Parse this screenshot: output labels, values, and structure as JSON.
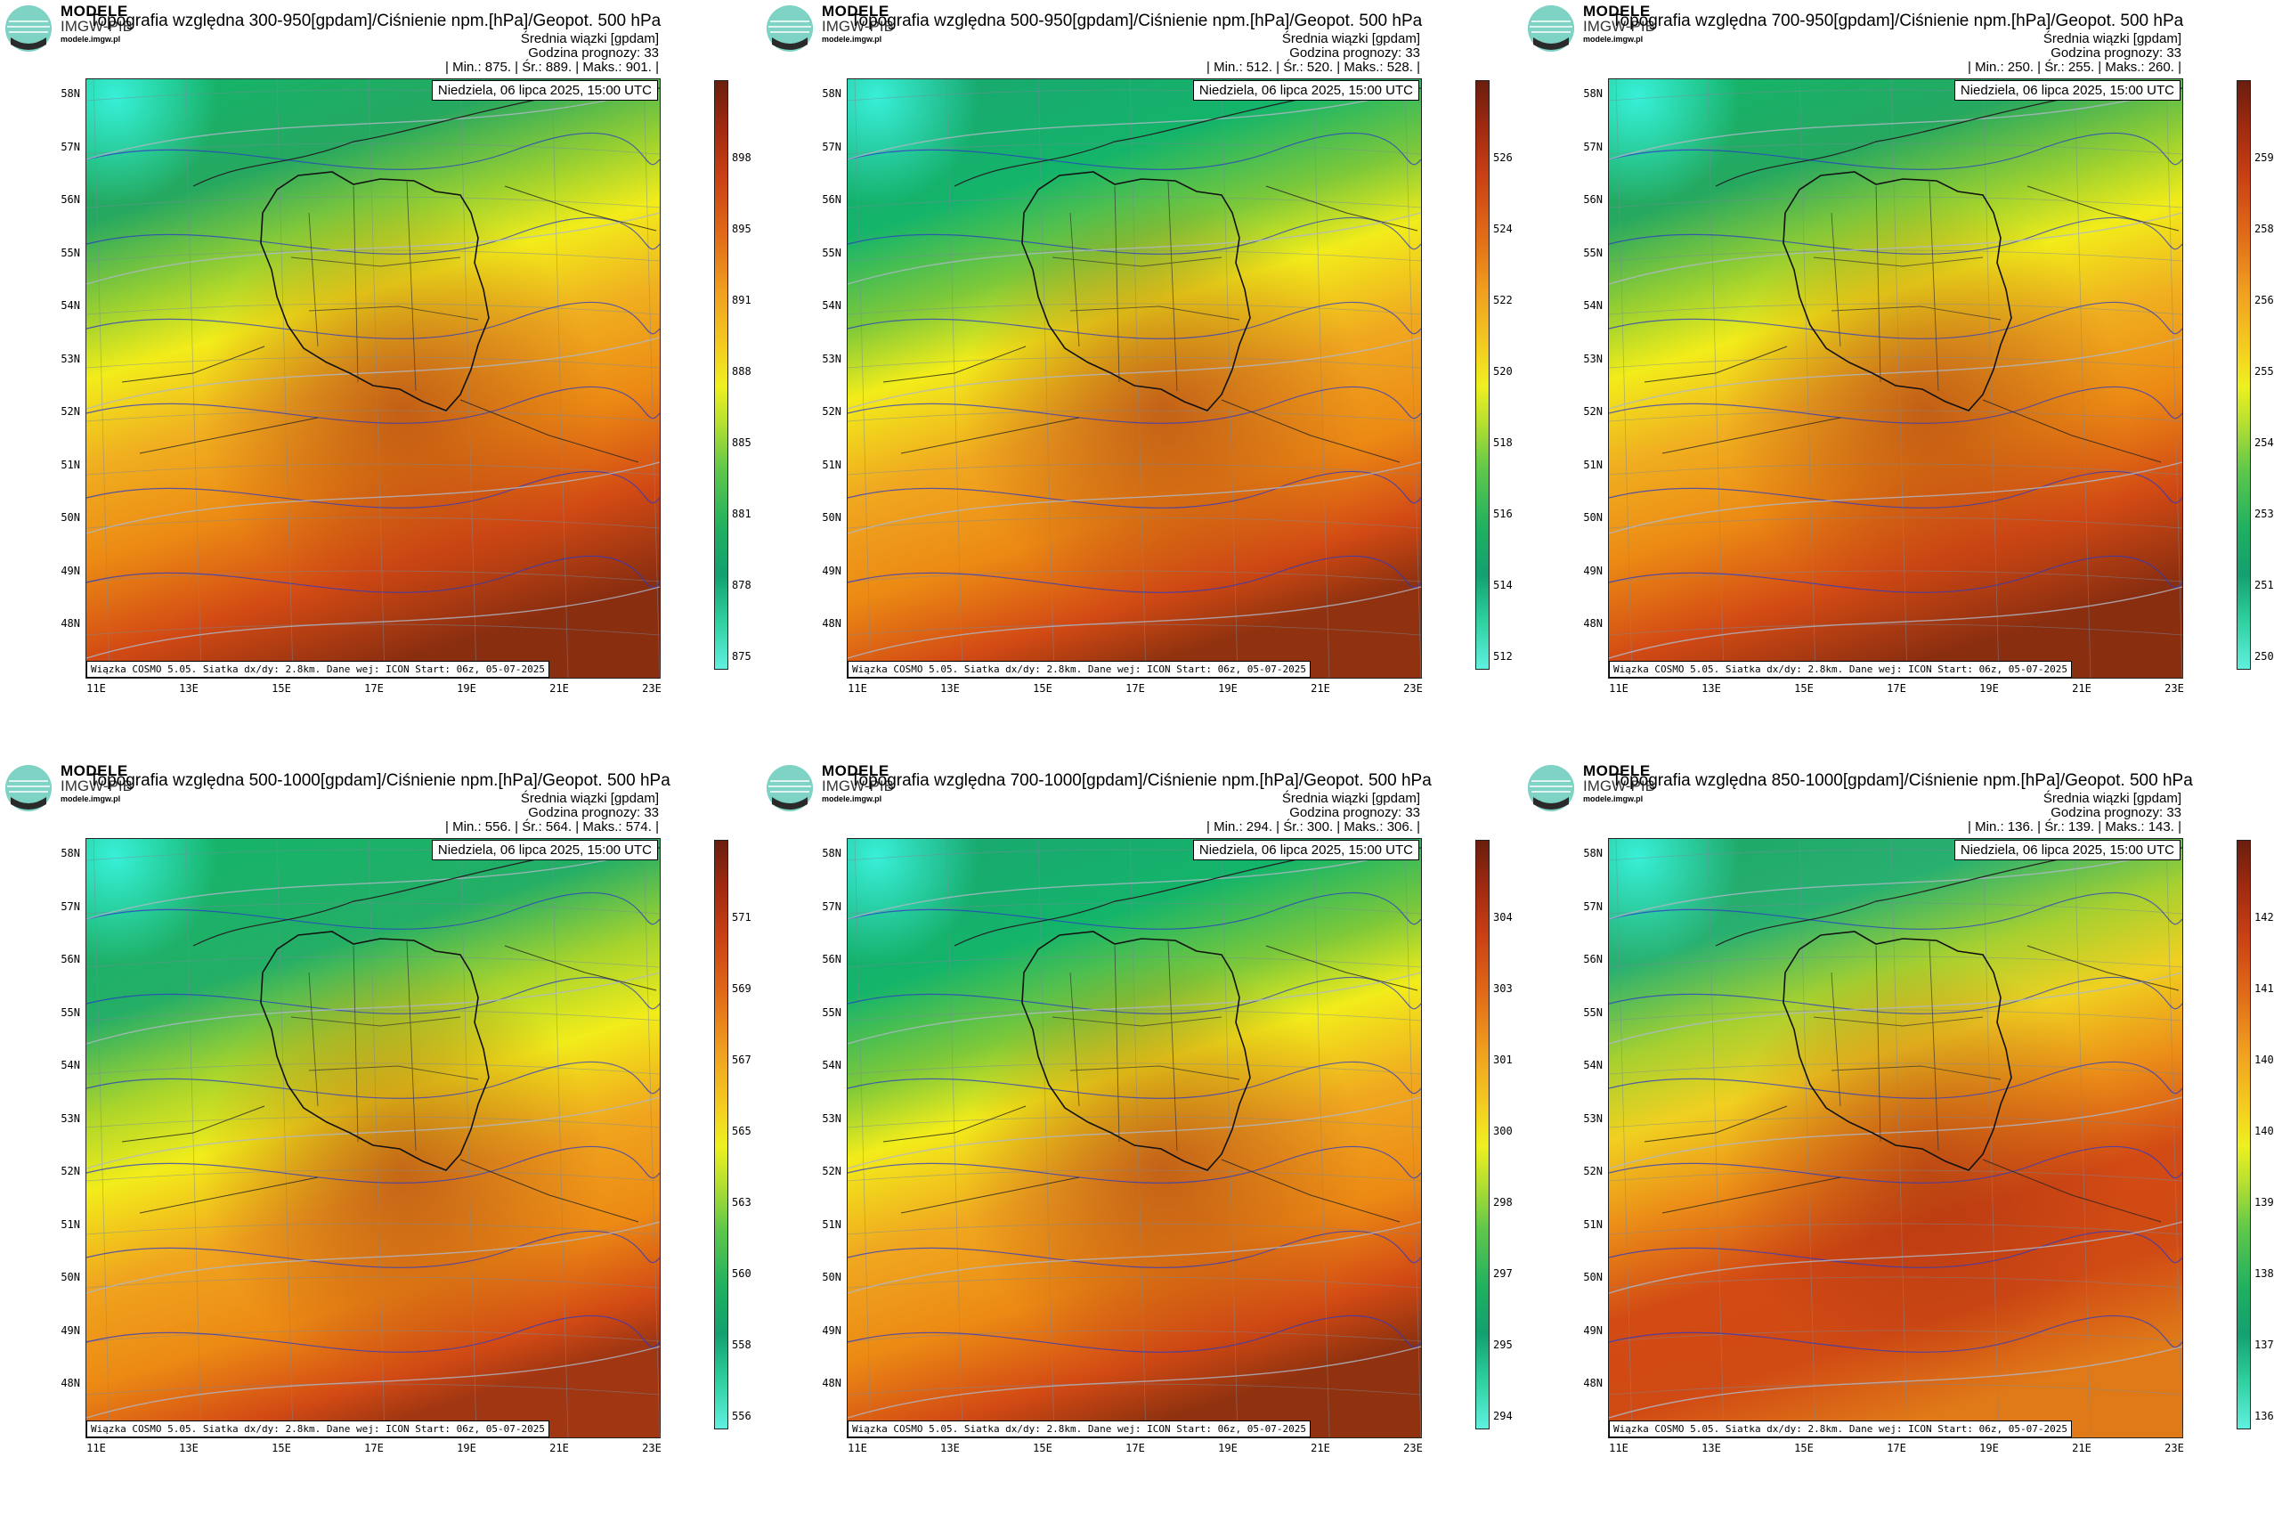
{
  "brand": {
    "line1": "MODELE",
    "line2": "IMGW-PIB",
    "url": "modele.imgw.pl"
  },
  "common": {
    "date": "Niedziela, 06 lipca 2025, 15:00 UTC",
    "ensemble_mean": "Średnia wiązki [gpdam]",
    "lead_time": "Godzina prognozy: 33",
    "footnote": "Wiązka COSMO 5.05. Siatka dx/dy: 2.8km. Dane wej: ICON Start: 06z, 05-07-2025",
    "lat_labels": [
      "58N",
      "57N",
      "56N",
      "55N",
      "54N",
      "53N",
      "52N",
      "51N",
      "50N",
      "49N",
      "48N"
    ],
    "lon_labels": [
      "11E",
      "13E",
      "15E",
      "17E",
      "19E",
      "21E",
      "23E"
    ]
  },
  "panels": [
    {
      "title": "Topografia względna 300-950[gpdam]/Ciśnienie npm.[hPa]/Geopot. 500 hPa",
      "min": "875.",
      "mean": "889.",
      "max": "901.",
      "ticks": [
        "898",
        "895",
        "891",
        "888",
        "885",
        "881",
        "878",
        "875"
      ],
      "scheme": "a"
    },
    {
      "title": "Topografia względna 500-950[gpdam]/Ciśnienie npm.[hPa]/Geopot. 500 hPa",
      "min": "512.",
      "mean": "520.",
      "max": "528.",
      "ticks": [
        "526",
        "524",
        "522",
        "520",
        "518",
        "516",
        "514",
        "512"
      ],
      "scheme": "b"
    },
    {
      "title": "Topografia względna 700-950[gpdam]/Ciśnienie npm.[hPa]/Geopot. 500 hPa",
      "min": "250.",
      "mean": "255.",
      "max": "260.",
      "ticks": [
        "259",
        "258",
        "256",
        "255",
        "254",
        "253",
        "251",
        "250"
      ],
      "scheme": "a"
    },
    {
      "title": "Topografia względna 500-1000[gpdam]/Ciśnienie npm.[hPa]/Geopot. 500 hPa",
      "min": "556.",
      "mean": "564.",
      "max": "574.",
      "ticks": [
        "571",
        "569",
        "567",
        "565",
        "563",
        "560",
        "558",
        "556"
      ],
      "scheme": "c"
    },
    {
      "title": "Topografia względna 700-1000[gpdam]/Ciśnienie npm.[hPa]/Geopot. 500 hPa",
      "min": "294.",
      "mean": "300.",
      "max": "306.",
      "ticks": [
        "304",
        "303",
        "301",
        "300",
        "298",
        "297",
        "295",
        "294"
      ],
      "scheme": "b"
    },
    {
      "title": "Topografia względna 850-1000[gpdam]/Ciśnienie npm.[hPa]/Geopot. 500 hPa",
      "min": "136.",
      "mean": "139.",
      "max": "143.",
      "ticks": [
        "142",
        "141",
        "140",
        "140",
        "139",
        "138",
        "137",
        "136"
      ],
      "scheme": "d"
    }
  ],
  "labels": {
    "min": "| Min.:",
    "mean": "| Śr.:",
    "max": "| Maks.:"
  },
  "colors": {
    "cyan": "#38f0d8",
    "green": "#14b46a",
    "yellow": "#f2ec1a",
    "orange": "#ec8a14",
    "red": "#d24a14",
    "darkred": "#6a1e0e"
  }
}
